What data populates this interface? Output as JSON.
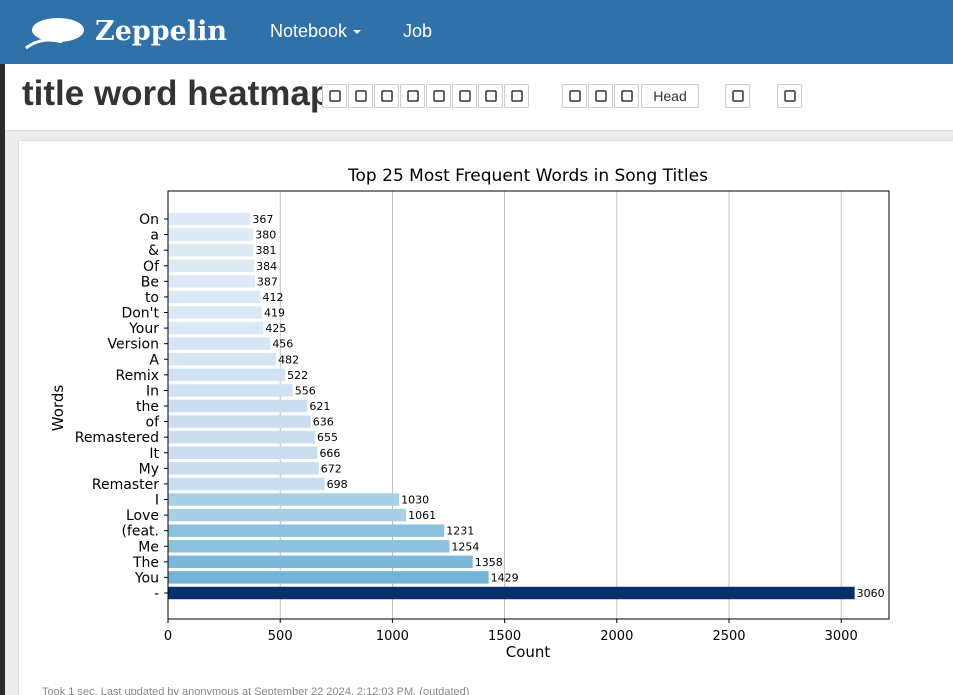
{
  "navbar": {
    "brand": "Zeppelin",
    "menu": [
      "Notebook",
      "Job"
    ]
  },
  "notebook": {
    "title": "title word heatmap",
    "display_mode": "Head"
  },
  "chart_data": {
    "type": "barh",
    "title": "Top 25 Most Frequent Words in Song Titles",
    "x_label": "Count",
    "y_label": "Words",
    "categories": [
      "On",
      "a",
      "&",
      "Of",
      "Be",
      "to",
      "Don't",
      "Your",
      "Version",
      "A",
      "Remix",
      "In",
      "the",
      "of",
      "Remastered",
      "It",
      "My",
      "Remaster",
      "I",
      "Love",
      "(feat.",
      "Me",
      "The",
      "You",
      "-"
    ],
    "values": [
      367,
      380,
      381,
      384,
      387,
      412,
      419,
      425,
      456,
      482,
      522,
      556,
      621,
      636,
      655,
      666,
      672,
      698,
      1030,
      1061,
      1231,
      1254,
      1358,
      1429,
      3060
    ],
    "colors": [
      "#deebf7",
      "#deebf7",
      "#deebf7",
      "#deebf7",
      "#deebf7",
      "#dbe9f6",
      "#dbe9f6",
      "#dbe9f6",
      "#d6e6f4",
      "#d6e6f4",
      "#d1e3f3",
      "#d1e3f3",
      "#cadef0",
      "#cadef0",
      "#cadef0",
      "#cadef0",
      "#cadef0",
      "#cadef0",
      "#a9cfe5",
      "#a9cfe5",
      "#8dc1dd",
      "#8dc1dd",
      "#7db8da",
      "#74b3d8",
      "#08306b"
    ],
    "xlim": [
      0,
      3213
    ],
    "xticks": [
      0,
      500,
      1000,
      1500,
      2000,
      2500,
      3000
    ],
    "grid": true
  },
  "paragraph": {
    "footer": "Took 1 sec. Last updated by anonymous at September 22 2024, 2:12:03 PM. (outdated)"
  }
}
